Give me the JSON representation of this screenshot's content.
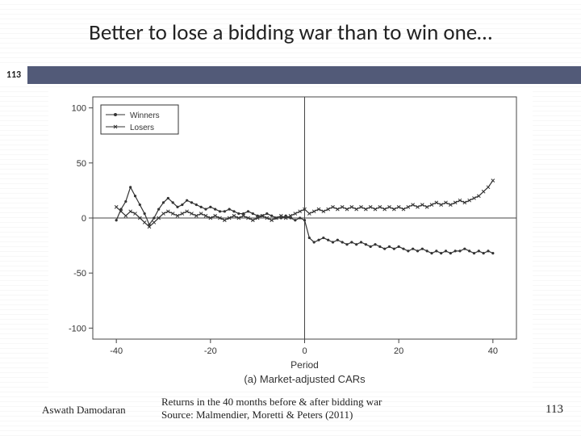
{
  "slide": {
    "title": "Better to lose a bidding war than to win one…",
    "bar_number": "113",
    "bar_color": "#525a78",
    "author": "Aswath Damodaran",
    "caption_line1": "Returns in the 40 months before & after bidding war",
    "caption_line2": "Source: Malmendier, Moretti & Peters (2011)",
    "page_number": "113"
  },
  "chart": {
    "type": "line",
    "subtitle": "(a) Market-adjusted CARs",
    "xlabel": "Period",
    "x_range": [
      -45,
      45
    ],
    "y_range": [
      -110,
      110
    ],
    "x_ticks": [
      -40,
      -20,
      0,
      20,
      40
    ],
    "y_ticks": [
      -100,
      -50,
      0,
      50,
      100
    ],
    "axis_color": "#444444",
    "tick_font_size": 11,
    "label_font_size": 12,
    "subtitle_font_size": 13,
    "background_color": "#ffffff",
    "legend": {
      "entries": [
        {
          "label": "Winners",
          "marker": "circle",
          "color": "#333333"
        },
        {
          "label": "Losers",
          "marker": "x",
          "color": "#333333"
        }
      ],
      "box_color": "#333333"
    },
    "series": [
      {
        "name": "Winners",
        "marker": "circle",
        "color": "#333333",
        "line_width": 1.2,
        "data": [
          [
            -40,
            -2
          ],
          [
            -39,
            8
          ],
          [
            -38,
            15
          ],
          [
            -37,
            28
          ],
          [
            -36,
            20
          ],
          [
            -35,
            12
          ],
          [
            -34,
            4
          ],
          [
            -33,
            -6
          ],
          [
            -32,
            0
          ],
          [
            -31,
            8
          ],
          [
            -30,
            14
          ],
          [
            -29,
            18
          ],
          [
            -28,
            14
          ],
          [
            -27,
            10
          ],
          [
            -26,
            12
          ],
          [
            -25,
            16
          ],
          [
            -24,
            14
          ],
          [
            -23,
            12
          ],
          [
            -22,
            10
          ],
          [
            -21,
            8
          ],
          [
            -20,
            10
          ],
          [
            -19,
            8
          ],
          [
            -18,
            6
          ],
          [
            -17,
            6
          ],
          [
            -16,
            8
          ],
          [
            -15,
            6
          ],
          [
            -14,
            4
          ],
          [
            -13,
            4
          ],
          [
            -12,
            6
          ],
          [
            -11,
            4
          ],
          [
            -10,
            2
          ],
          [
            -9,
            2
          ],
          [
            -8,
            4
          ],
          [
            -7,
            2
          ],
          [
            -6,
            0
          ],
          [
            -5,
            0
          ],
          [
            -4,
            2
          ],
          [
            -3,
            0
          ],
          [
            -2,
            -2
          ],
          [
            -1,
            0
          ],
          [
            0,
            -2
          ],
          [
            1,
            -18
          ],
          [
            2,
            -22
          ],
          [
            3,
            -20
          ],
          [
            4,
            -18
          ],
          [
            5,
            -20
          ],
          [
            6,
            -22
          ],
          [
            7,
            -20
          ],
          [
            8,
            -22
          ],
          [
            9,
            -24
          ],
          [
            10,
            -22
          ],
          [
            11,
            -24
          ],
          [
            12,
            -22
          ],
          [
            13,
            -24
          ],
          [
            14,
            -26
          ],
          [
            15,
            -24
          ],
          [
            16,
            -26
          ],
          [
            17,
            -28
          ],
          [
            18,
            -26
          ],
          [
            19,
            -28
          ],
          [
            20,
            -26
          ],
          [
            21,
            -28
          ],
          [
            22,
            -30
          ],
          [
            23,
            -28
          ],
          [
            24,
            -30
          ],
          [
            25,
            -28
          ],
          [
            26,
            -30
          ],
          [
            27,
            -32
          ],
          [
            28,
            -30
          ],
          [
            29,
            -32
          ],
          [
            30,
            -30
          ],
          [
            31,
            -32
          ],
          [
            32,
            -30
          ],
          [
            33,
            -30
          ],
          [
            34,
            -28
          ],
          [
            35,
            -30
          ],
          [
            36,
            -32
          ],
          [
            37,
            -30
          ],
          [
            38,
            -32
          ],
          [
            39,
            -30
          ],
          [
            40,
            -32
          ]
        ]
      },
      {
        "name": "Losers",
        "marker": "x",
        "color": "#333333",
        "line_width": 1.2,
        "data": [
          [
            -40,
            10
          ],
          [
            -39,
            6
          ],
          [
            -38,
            2
          ],
          [
            -37,
            6
          ],
          [
            -36,
            4
          ],
          [
            -35,
            0
          ],
          [
            -34,
            -4
          ],
          [
            -33,
            -8
          ],
          [
            -32,
            -4
          ],
          [
            -31,
            0
          ],
          [
            -30,
            4
          ],
          [
            -29,
            6
          ],
          [
            -28,
            4
          ],
          [
            -27,
            2
          ],
          [
            -26,
            4
          ],
          [
            -25,
            6
          ],
          [
            -24,
            4
          ],
          [
            -23,
            2
          ],
          [
            -22,
            4
          ],
          [
            -21,
            2
          ],
          [
            -20,
            0
          ],
          [
            -19,
            2
          ],
          [
            -18,
            0
          ],
          [
            -17,
            -2
          ],
          [
            -16,
            0
          ],
          [
            -15,
            2
          ],
          [
            -14,
            0
          ],
          [
            -13,
            2
          ],
          [
            -12,
            0
          ],
          [
            -11,
            -2
          ],
          [
            -10,
            0
          ],
          [
            -9,
            2
          ],
          [
            -8,
            0
          ],
          [
            -7,
            -2
          ],
          [
            -6,
            0
          ],
          [
            -5,
            2
          ],
          [
            -4,
            0
          ],
          [
            -3,
            2
          ],
          [
            -2,
            4
          ],
          [
            -1,
            6
          ],
          [
            0,
            8
          ],
          [
            1,
            4
          ],
          [
            2,
            6
          ],
          [
            3,
            8
          ],
          [
            4,
            6
          ],
          [
            5,
            8
          ],
          [
            6,
            10
          ],
          [
            7,
            8
          ],
          [
            8,
            10
          ],
          [
            9,
            8
          ],
          [
            10,
            10
          ],
          [
            11,
            8
          ],
          [
            12,
            10
          ],
          [
            13,
            8
          ],
          [
            14,
            10
          ],
          [
            15,
            8
          ],
          [
            16,
            10
          ],
          [
            17,
            8
          ],
          [
            18,
            10
          ],
          [
            19,
            8
          ],
          [
            20,
            10
          ],
          [
            21,
            8
          ],
          [
            22,
            10
          ],
          [
            23,
            12
          ],
          [
            24,
            10
          ],
          [
            25,
            12
          ],
          [
            26,
            10
          ],
          [
            27,
            12
          ],
          [
            28,
            14
          ],
          [
            29,
            12
          ],
          [
            30,
            14
          ],
          [
            31,
            12
          ],
          [
            32,
            14
          ],
          [
            33,
            16
          ],
          [
            34,
            14
          ],
          [
            35,
            16
          ],
          [
            36,
            18
          ],
          [
            37,
            20
          ],
          [
            38,
            24
          ],
          [
            39,
            28
          ],
          [
            40,
            34
          ]
        ]
      }
    ]
  }
}
